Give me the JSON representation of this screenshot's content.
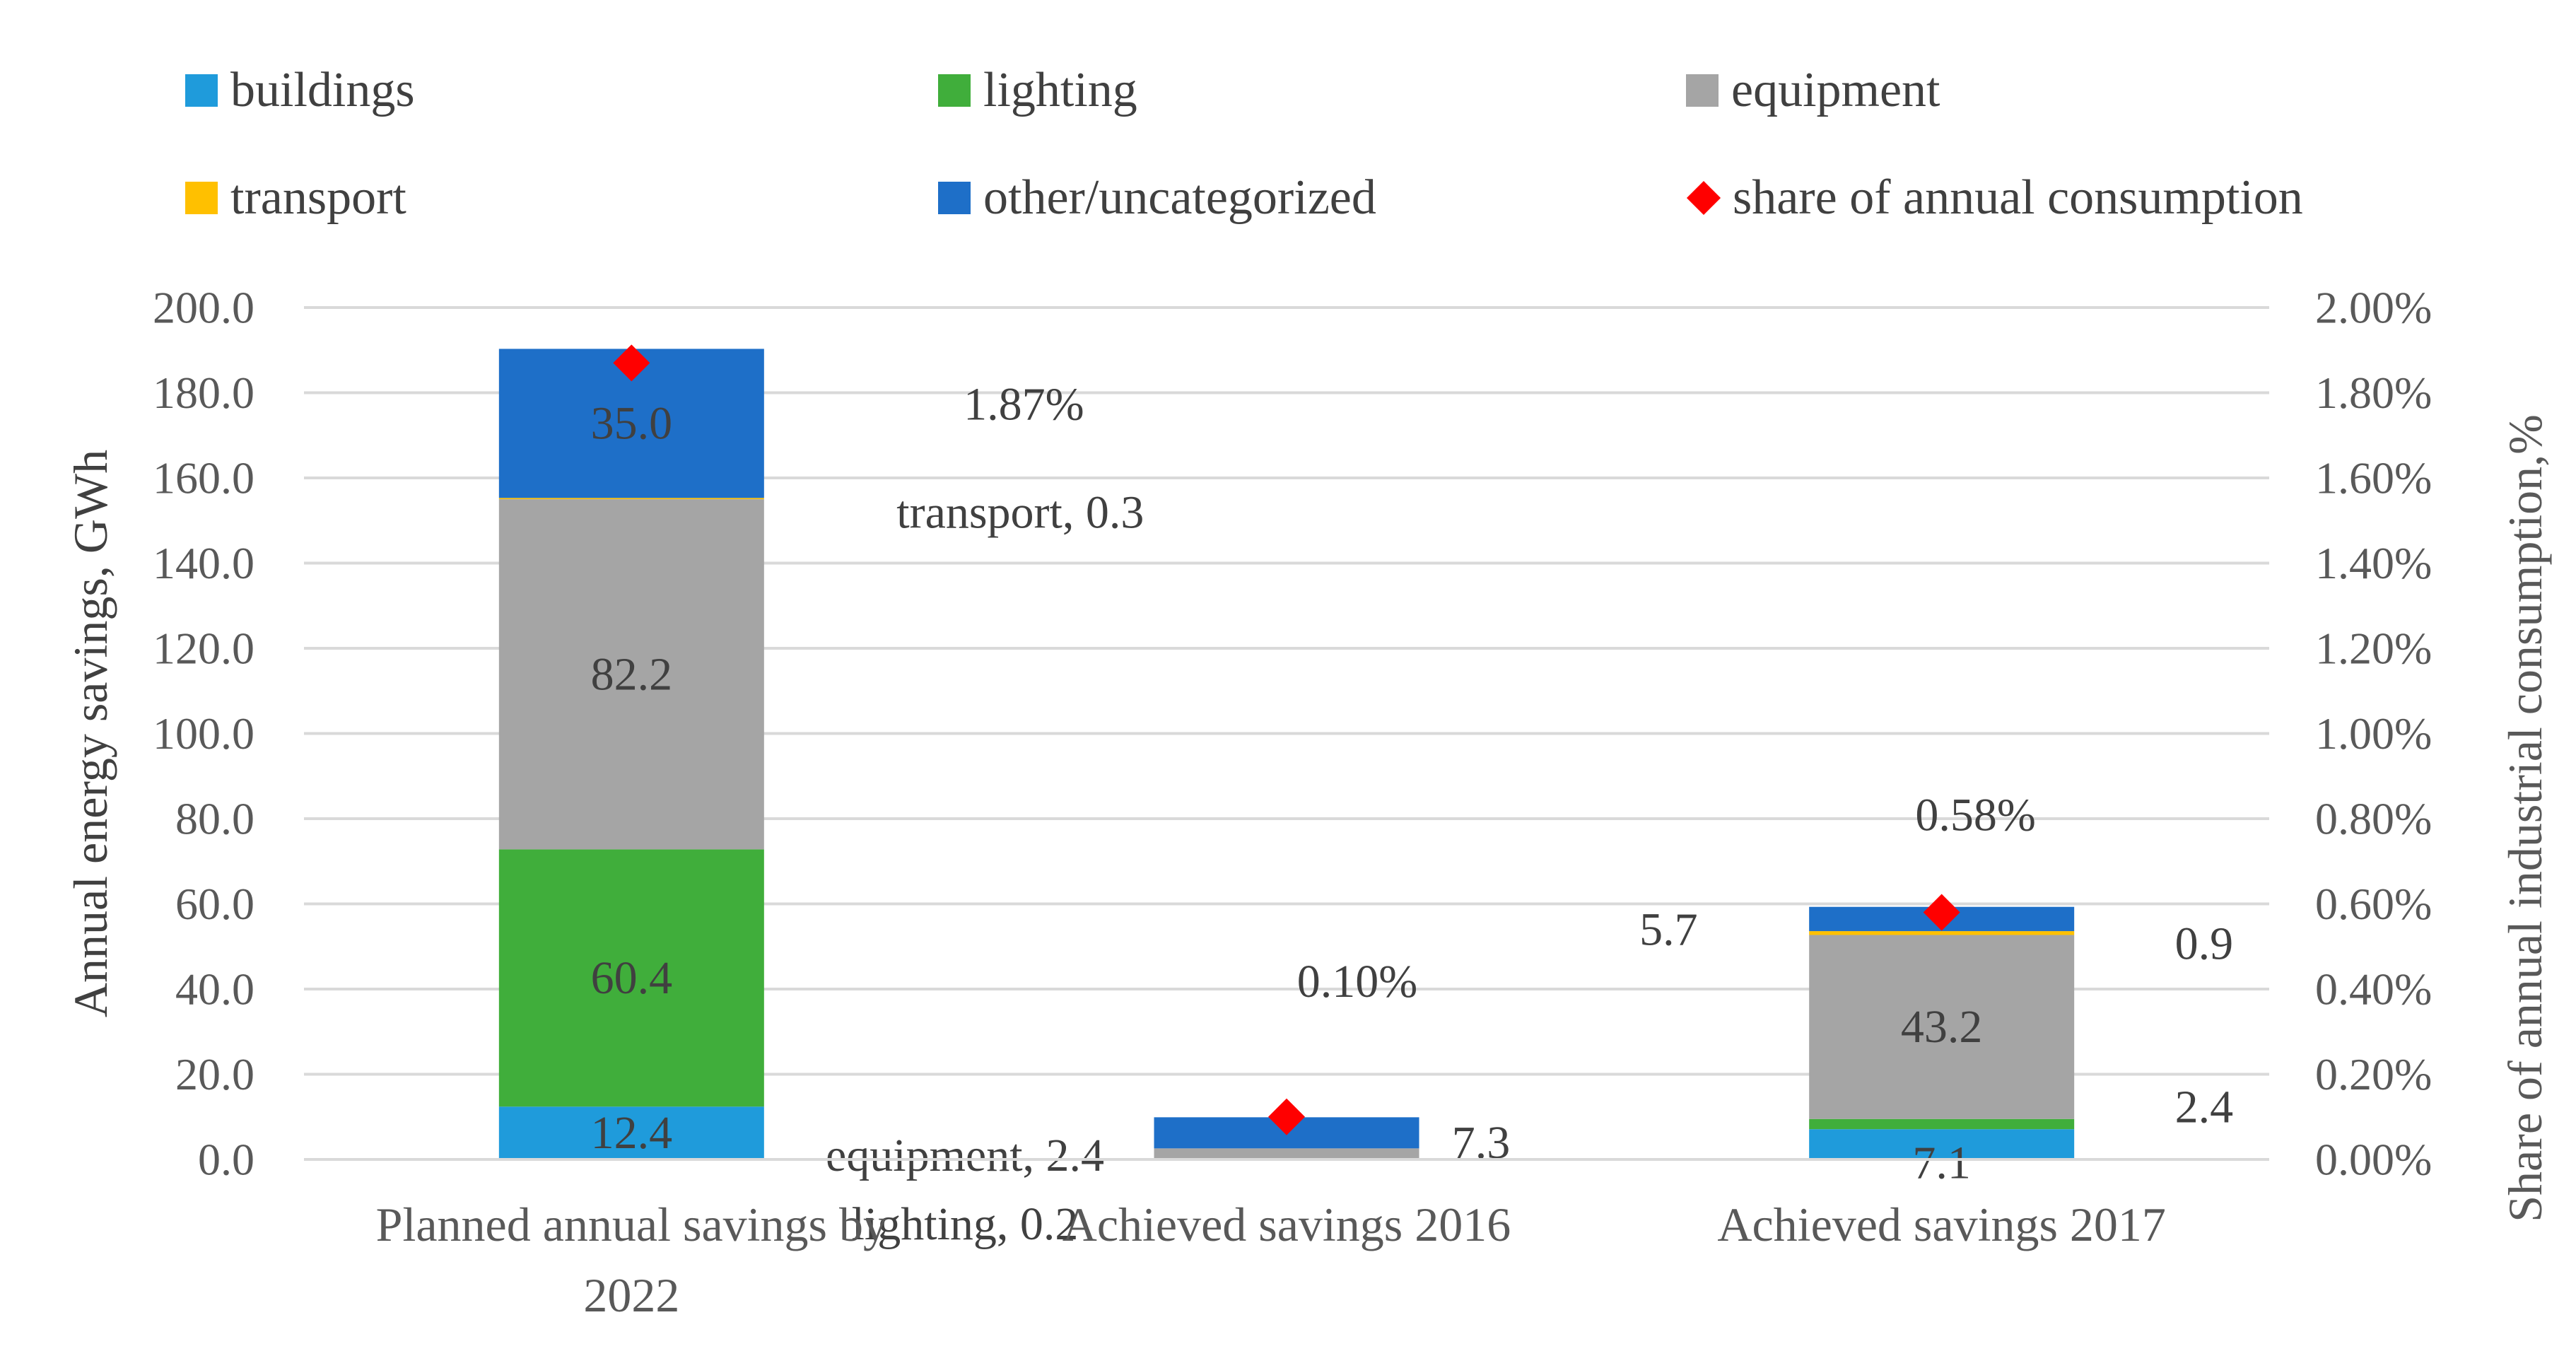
{
  "chart_data": {
    "type": "bar",
    "stacked": true,
    "categories": [
      "Planned annual savings by 2022",
      "Achieved savings 2016",
      "Achieved savings 2017"
    ],
    "category_lines": [
      [
        "Planned annual savings by",
        "2022"
      ],
      [
        "Achieved savings 2016"
      ],
      [
        "Achieved savings 2017"
      ]
    ],
    "series": [
      {
        "name": "buildings",
        "color": "#1F9BDB",
        "values": [
          12.4,
          0,
          7.1
        ]
      },
      {
        "name": "lighting",
        "color": "#40AE3B",
        "values": [
          60.4,
          0.2,
          2.4
        ]
      },
      {
        "name": "equipment",
        "color": "#A5A5A5",
        "values": [
          82.2,
          2.4,
          43.2
        ]
      },
      {
        "name": "transport",
        "color": "#FFC000",
        "values": [
          0.3,
          0,
          0.9
        ]
      },
      {
        "name": "other/uncategorized",
        "color": "#1E6FC8",
        "values": [
          35.0,
          7.3,
          5.7
        ]
      }
    ],
    "share_series": {
      "name": "share of annual consumption",
      "color": "#FF0000",
      "values": [
        1.87,
        0.1,
        0.58
      ],
      "labels": [
        "1.87%",
        "0.10%",
        "0.58%"
      ]
    },
    "ylabel": "Annual energy savings, GWh",
    "y2label": "Share of annual industrial consumption,%",
    "ylim": [
      0,
      200
    ],
    "y2lim": [
      0,
      2
    ],
    "yticks": [
      "0.0",
      "20.0",
      "40.0",
      "60.0",
      "80.0",
      "100.0",
      "120.0",
      "140.0",
      "160.0",
      "180.0",
      "200.0"
    ],
    "y2ticks": [
      "0.00%",
      "0.20%",
      "0.40%",
      "0.60%",
      "0.80%",
      "1.00%",
      "1.20%",
      "1.40%",
      "1.60%",
      "1.80%",
      "2.00%"
    ],
    "data_labels": [
      {
        "text": "12.4",
        "cat": 0,
        "series": 0
      },
      {
        "text": "60.4",
        "cat": 0,
        "series": 1
      },
      {
        "text": "82.2",
        "cat": 0,
        "series": 2
      },
      {
        "text": "transport, 0.3",
        "cat": 0,
        "series": 3
      },
      {
        "text": "35.0",
        "cat": 0,
        "series": 4
      },
      {
        "text": "lighting, 0.2",
        "cat": 1,
        "series": 1
      },
      {
        "text": "equipment, 2.4",
        "cat": 1,
        "series": 2
      },
      {
        "text": "7.3",
        "cat": 1,
        "series": 4
      },
      {
        "text": "7.1",
        "cat": 2,
        "series": 0
      },
      {
        "text": "2.4",
        "cat": 2,
        "series": 1
      },
      {
        "text": "43.2",
        "cat": 2,
        "series": 2
      },
      {
        "text": "0.9",
        "cat": 2,
        "series": 3
      },
      {
        "text": "5.7",
        "cat": 2,
        "series": 4
      }
    ],
    "legend_position": "top",
    "grid": true
  }
}
